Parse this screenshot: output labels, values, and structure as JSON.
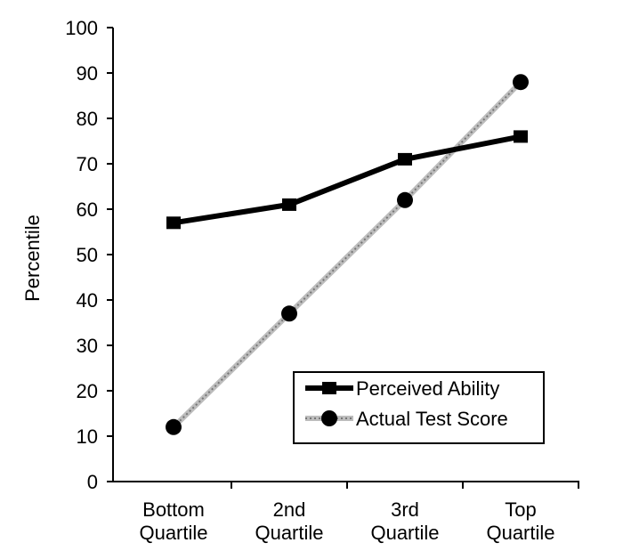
{
  "chart_data": {
    "type": "line",
    "title": "",
    "xlabel": "",
    "ylabel": "Percentile",
    "ylim": [
      0,
      100
    ],
    "yticks": [
      0,
      10,
      20,
      30,
      40,
      50,
      60,
      70,
      80,
      90,
      100
    ],
    "categories": [
      [
        "Bottom",
        "Quartile"
      ],
      [
        "2nd",
        "Quartile"
      ],
      [
        "3rd",
        "Quartile"
      ],
      [
        "Top",
        "Quartile"
      ]
    ],
    "series": [
      {
        "name": "Perceived Ability",
        "values": [
          57,
          61,
          71,
          76
        ],
        "marker": "square",
        "color": "#000000",
        "line_style": "solid-thick"
      },
      {
        "name": "Actual Test Score",
        "values": [
          12,
          37,
          62,
          88
        ],
        "marker": "circle",
        "color": "#999999",
        "line_style": "gray-dotted"
      }
    ],
    "legend": {
      "placement": "bottom-right",
      "entries": [
        "Perceived Ability",
        "Actual Test Score"
      ]
    },
    "grid": false
  }
}
